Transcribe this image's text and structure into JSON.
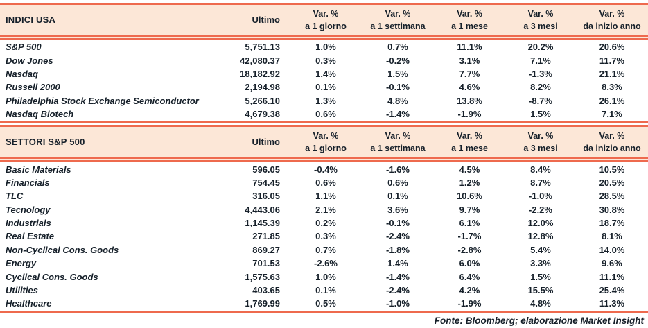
{
  "colors": {
    "accent": "#ee6a4e",
    "header_bg": "#fce7d7",
    "text": "#16202a"
  },
  "columns": {
    "ultimo": "Ultimo",
    "var_label": "Var. %",
    "sub_labels": [
      "a 1 giorno",
      "a 1 settimana",
      "a 1 mese",
      "a 3 mesi",
      "da inizio anno"
    ]
  },
  "sections": [
    {
      "title": "INDICI USA",
      "rows": [
        {
          "name": "S&P 500",
          "ultimo": "5,751.13",
          "vars": [
            "1.0%",
            "0.7%",
            "11.1%",
            "20.2%",
            "20.6%"
          ]
        },
        {
          "name": "Dow Jones",
          "ultimo": "42,080.37",
          "vars": [
            "0.3%",
            "-0.2%",
            "3.1%",
            "7.1%",
            "11.7%"
          ]
        },
        {
          "name": "Nasdaq",
          "ultimo": "18,182.92",
          "vars": [
            "1.4%",
            "1.5%",
            "7.7%",
            "-1.3%",
            "21.1%"
          ]
        },
        {
          "name": "Russell 2000",
          "ultimo": "2,194.98",
          "vars": [
            "0.1%",
            "-0.1%",
            "4.6%",
            "8.2%",
            "8.3%"
          ]
        },
        {
          "name": "Philadelphia Stock Exchange Semiconductor",
          "ultimo": "5,266.10",
          "vars": [
            "1.3%",
            "4.8%",
            "13.8%",
            "-8.7%",
            "26.1%"
          ]
        },
        {
          "name": "Nasdaq Biotech",
          "ultimo": "4,679.38",
          "vars": [
            "0.6%",
            "-1.4%",
            "-1.9%",
            "1.5%",
            "7.1%"
          ]
        }
      ]
    },
    {
      "title": "SETTORI S&P 500",
      "rows": [
        {
          "name": "Basic Materials",
          "ultimo": "596.05",
          "vars": [
            "-0.4%",
            "-1.6%",
            "4.5%",
            "8.4%",
            "10.5%"
          ]
        },
        {
          "name": "Financials",
          "ultimo": "754.45",
          "vars": [
            "0.6%",
            "0.6%",
            "1.2%",
            "8.7%",
            "20.5%"
          ]
        },
        {
          "name": "TLC",
          "ultimo": "316.05",
          "vars": [
            "1.1%",
            "0.1%",
            "10.6%",
            "-1.0%",
            "28.5%"
          ]
        },
        {
          "name": "Tecnology",
          "ultimo": "4,443.06",
          "vars": [
            "2.1%",
            "3.6%",
            "9.7%",
            "-2.2%",
            "30.8%"
          ]
        },
        {
          "name": "Industrials",
          "ultimo": "1,145.39",
          "vars": [
            "0.2%",
            "-0.1%",
            "6.1%",
            "12.0%",
            "18.7%"
          ]
        },
        {
          "name": "Real Estate",
          "ultimo": "271.85",
          "vars": [
            "0.3%",
            "-2.4%",
            "-1.7%",
            "12.8%",
            "8.1%"
          ]
        },
        {
          "name": "Non-Cyclical Cons. Goods",
          "ultimo": "869.27",
          "vars": [
            "0.7%",
            "-1.8%",
            "-2.8%",
            "5.4%",
            "14.0%"
          ]
        },
        {
          "name": "Energy",
          "ultimo": "701.53",
          "vars": [
            "-2.6%",
            "1.4%",
            "6.0%",
            "3.3%",
            "9.6%"
          ]
        },
        {
          "name": "Cyclical Cons. Goods",
          "ultimo": "1,575.63",
          "vars": [
            "1.0%",
            "-1.4%",
            "6.4%",
            "1.5%",
            "11.1%"
          ]
        },
        {
          "name": "Utilities",
          "ultimo": "403.65",
          "vars": [
            "0.1%",
            "-2.4%",
            "4.2%",
            "15.5%",
            "25.4%"
          ]
        },
        {
          "name": "Healthcare",
          "ultimo": "1,769.99",
          "vars": [
            "0.5%",
            "-1.0%",
            "-1.9%",
            "4.8%",
            "11.3%"
          ]
        }
      ]
    }
  ],
  "footer": "Fonte: Bloomberg; elaborazione Market Insight"
}
